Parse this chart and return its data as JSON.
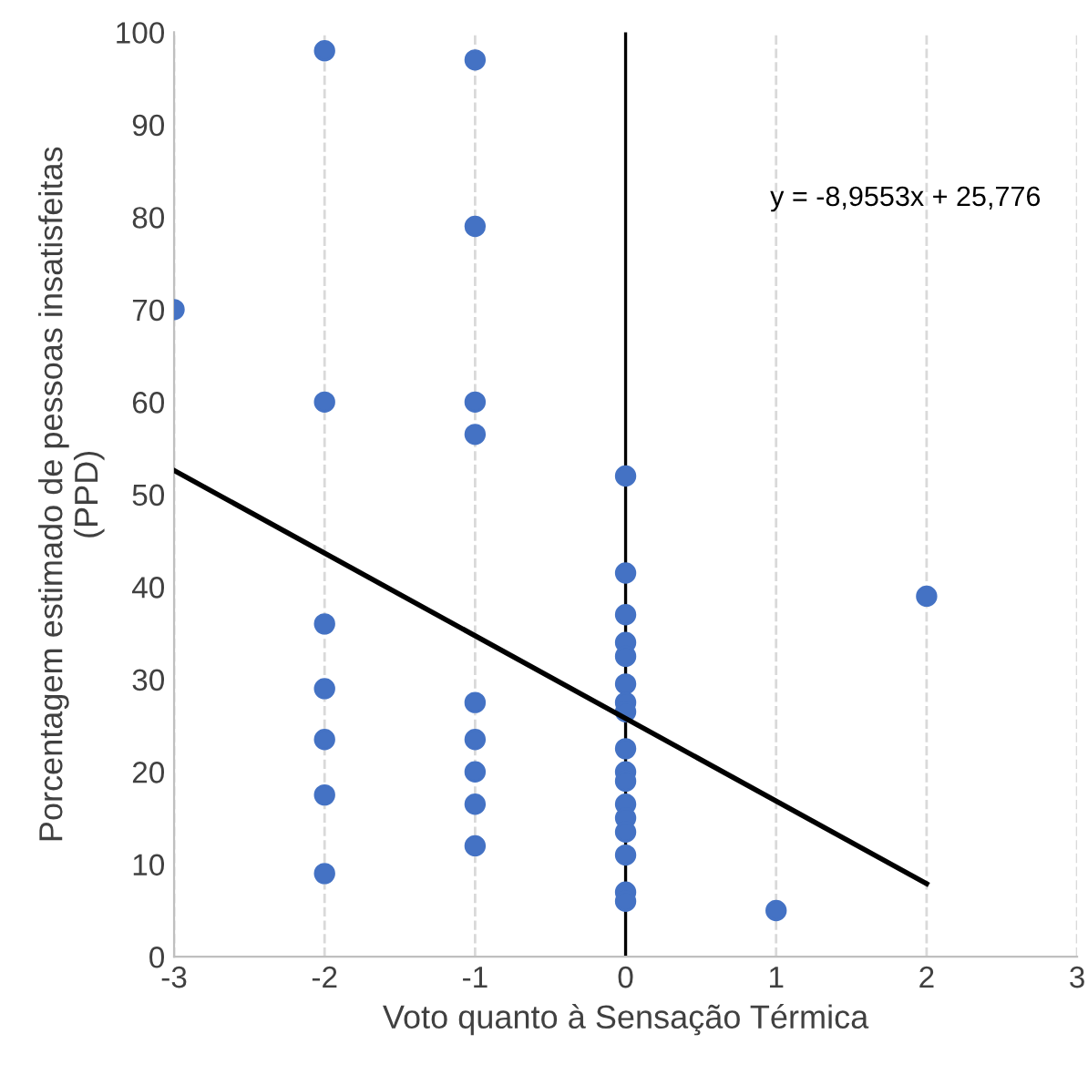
{
  "chart_data": {
    "type": "scatter",
    "xlabel": "Voto quanto à Sensação Térmica",
    "ylabel": "Porcentagem estimado de pessoas insatisfeitas\n(PPD)",
    "xlim": [
      -3,
      3
    ],
    "xticks": [
      -3,
      -2,
      -1,
      0,
      1,
      2,
      3
    ],
    "ylim": [
      0,
      100
    ],
    "yticks": [
      0,
      10,
      20,
      30,
      40,
      50,
      60,
      70,
      80,
      90,
      100
    ],
    "grid": "x",
    "annotations": [
      "y = -8,9553x + 25,776"
    ],
    "ref_lines": [
      {
        "axis": "x",
        "value": 0,
        "label": null,
        "color": "#000000"
      }
    ],
    "series": [
      {
        "marker": "circle",
        "color": "#4472c4",
        "x": [
          -3,
          -2,
          -2,
          -2,
          -2,
          -2,
          -2,
          -2,
          -1,
          -1,
          -1,
          -1,
          -1,
          -1,
          -1,
          -1,
          -1,
          0,
          0,
          0,
          0,
          0,
          0,
          0,
          0,
          0,
          0,
          0,
          0,
          0,
          0,
          0,
          0,
          0,
          1,
          2
        ],
        "values": [
          70,
          98,
          60,
          36,
          29,
          23.5,
          17.5,
          9,
          97,
          79,
          60,
          56.5,
          27.5,
          23.5,
          20,
          16.5,
          12,
          52,
          41.5,
          37,
          34,
          32.5,
          29.5,
          27.5,
          26.5,
          22.5,
          20,
          19,
          16.5,
          15,
          13.5,
          11,
          7,
          6,
          5,
          39
        ]
      },
      {
        "type": "line",
        "color": "#000000",
        "x": [
          -3,
          2
        ],
        "values": [
          52.6,
          7.9
        ],
        "marker": "none",
        "line_style": "solid"
      }
    ]
  }
}
